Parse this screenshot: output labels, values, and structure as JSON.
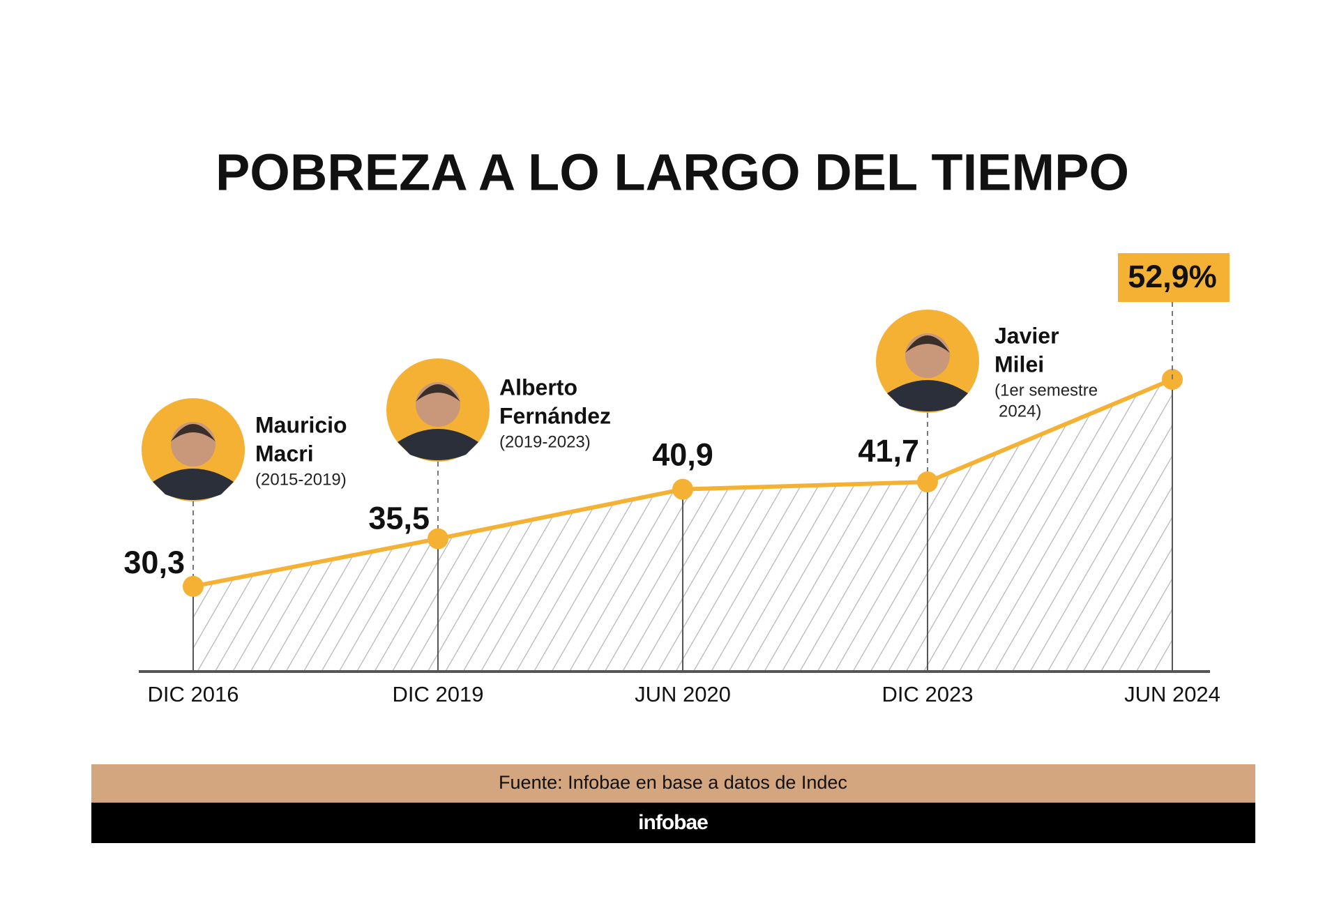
{
  "chart_data": {
    "type": "area",
    "title": "POBREZA A LO LARGO DEL TIEMPO",
    "categories": [
      "DIC 2016",
      "DIC 2019",
      "JUN 2020",
      "DIC 2023",
      "JUN 2024"
    ],
    "values": [
      30.3,
      35.5,
      40.9,
      41.7,
      52.9
    ],
    "value_labels": [
      "30,3",
      "35,5",
      "40,9",
      "41,7",
      "52,9%"
    ],
    "color": "#f5b133",
    "ylim": [
      21,
      66
    ],
    "annotations": [
      {
        "lines": [
          "Mauricio",
          "Macri"
        ],
        "period": [
          "(2015-2019)"
        ]
      },
      {
        "lines": [
          "Alberto",
          "Fernández"
        ],
        "period": [
          "(2019-2023)"
        ]
      },
      {
        "lines": [
          "Javier",
          "Milei"
        ],
        "period": [
          "(1er semestre",
          "2024)"
        ]
      }
    ],
    "source": "Fuente: Infobae en base a datos de Indec",
    "brand": "infobae"
  }
}
